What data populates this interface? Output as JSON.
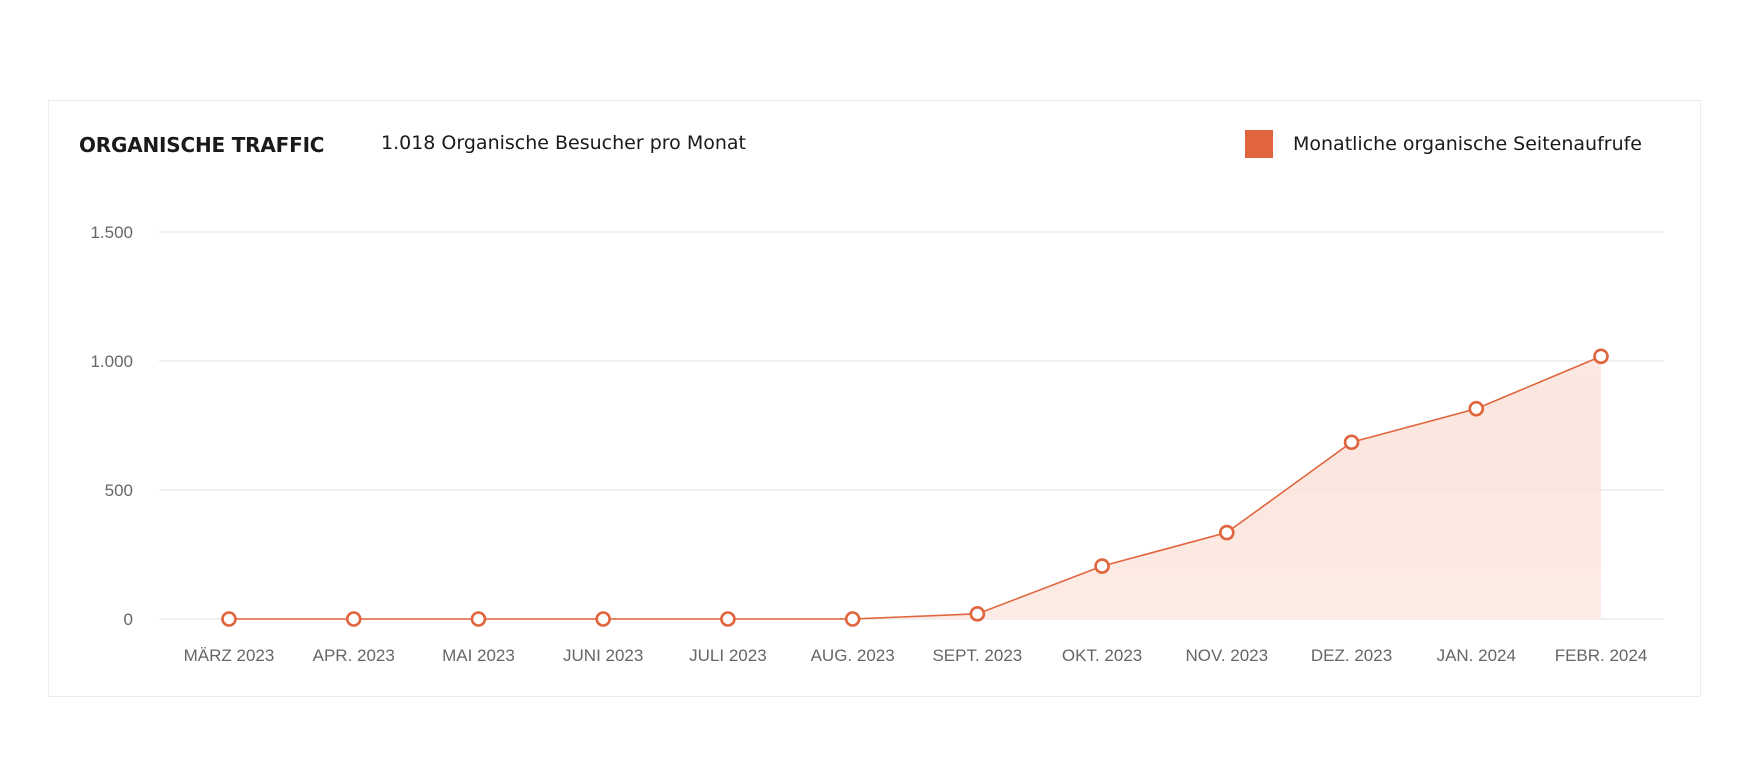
{
  "header": {
    "title": "ORGANISCHE TRAFFIC",
    "subtitle": "1.018 Organische Besucher pro Monat"
  },
  "legend": {
    "label": "Monatliche organische Seitenaufrufe",
    "color": "#e0643c"
  },
  "colors": {
    "line": "#e0643c",
    "marker_fill": "#ffffff",
    "area_top": "#f8d5c8",
    "area_bottom": "#fdece6",
    "grid": "#e8e8e8"
  },
  "chart_data": {
    "type": "area",
    "categories": [
      "MÄRZ 2023",
      "APR. 2023",
      "MAI 2023",
      "JUNI 2023",
      "JULI 2023",
      "AUG. 2023",
      "SEPT. 2023",
      "OKT. 2023",
      "NOV. 2023",
      "DEZ. 2023",
      "JAN. 2024",
      "FEBR. 2024"
    ],
    "series": [
      {
        "name": "Monatliche organische Seitenaufrufe",
        "values": [
          0,
          0,
          0,
          0,
          0,
          0,
          20,
          205,
          335,
          685,
          815,
          1018
        ]
      }
    ],
    "ylim": [
      0,
      1500
    ],
    "yticks": [
      0,
      500,
      1000,
      1500
    ],
    "ytick_labels": [
      "0",
      "500",
      "1.000",
      "1.500"
    ],
    "grid": true,
    "legend_position": "top-right"
  }
}
